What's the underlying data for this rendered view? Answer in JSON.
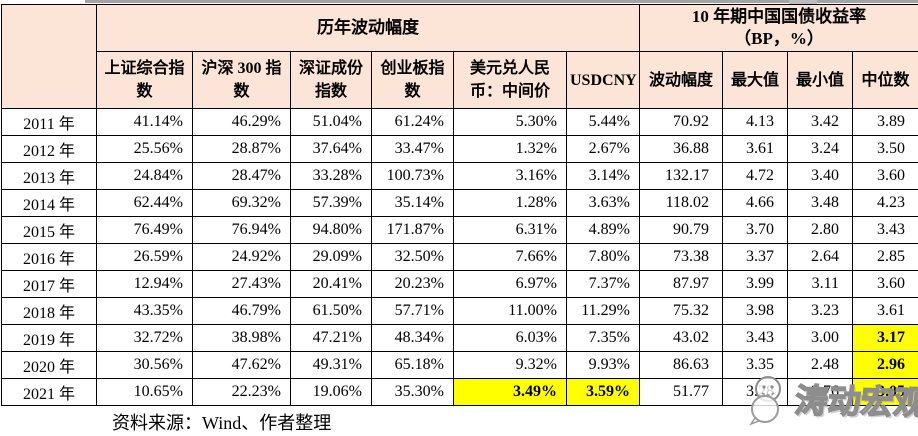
{
  "page": {
    "source_note": "资料来源：Wind、作者整理",
    "watermark": "涛动宏观"
  },
  "colors": {
    "header_bg": "#fce4d6",
    "highlight_bg": "#ffff00",
    "border": "#000000",
    "watermark_grey": "#8d8d8d"
  },
  "chart_data": {
    "type": "table",
    "group_headers": [
      {
        "label": "历年波动幅度",
        "span": 6
      },
      {
        "line1": "10 年期中国国债收益率",
        "line2": "（BP，%）",
        "span": 4
      }
    ],
    "column_headers": [
      "上证综合指数",
      "沪深 300 指数",
      "深证成份指数",
      "创业板指数",
      "美元兑人民币：中间价",
      "USDCNY",
      "波动幅度",
      "最大值",
      "最小值",
      "中位数"
    ],
    "rows": [
      {
        "year": "2011 年",
        "values": [
          "41.14%",
          "46.29%",
          "51.04%",
          "61.24%",
          "5.30%",
          "5.44%",
          "70.92",
          "4.13",
          "3.42",
          "3.89"
        ],
        "highlights": []
      },
      {
        "year": "2012 年",
        "values": [
          "25.56%",
          "28.87%",
          "37.64%",
          "33.47%",
          "1.32%",
          "2.67%",
          "36.88",
          "3.61",
          "3.24",
          "3.50"
        ],
        "highlights": []
      },
      {
        "year": "2013 年",
        "values": [
          "24.84%",
          "28.47%",
          "33.28%",
          "100.73%",
          "3.16%",
          "3.14%",
          "132.17",
          "4.72",
          "3.40",
          "3.60"
        ],
        "highlights": []
      },
      {
        "year": "2014 年",
        "values": [
          "62.44%",
          "69.32%",
          "57.39%",
          "35.14%",
          "1.28%",
          "3.63%",
          "118.02",
          "4.66",
          "3.48",
          "4.23"
        ],
        "highlights": []
      },
      {
        "year": "2015 年",
        "values": [
          "76.49%",
          "76.94%",
          "94.80%",
          "171.87%",
          "6.31%",
          "4.89%",
          "90.79",
          "3.70",
          "2.80",
          "3.43"
        ],
        "highlights": []
      },
      {
        "year": "2016 年",
        "values": [
          "26.59%",
          "24.92%",
          "29.09%",
          "32.50%",
          "7.66%",
          "7.80%",
          "73.38",
          "3.37",
          "2.64",
          "2.85"
        ],
        "highlights": []
      },
      {
        "year": "2017 年",
        "values": [
          "12.94%",
          "27.43%",
          "20.41%",
          "20.23%",
          "6.97%",
          "7.37%",
          "87.97",
          "3.99",
          "3.11",
          "3.60"
        ],
        "highlights": []
      },
      {
        "year": "2018 年",
        "values": [
          "43.35%",
          "46.79%",
          "61.50%",
          "57.71%",
          "11.00%",
          "11.29%",
          "75.32",
          "3.98",
          "3.23",
          "3.61"
        ],
        "highlights": []
      },
      {
        "year": "2019 年",
        "values": [
          "32.72%",
          "38.98%",
          "47.21%",
          "48.34%",
          "6.03%",
          "7.35%",
          "43.02",
          "3.43",
          "3.00",
          "3.17"
        ],
        "highlights": [
          9
        ]
      },
      {
        "year": "2020 年",
        "values": [
          "30.56%",
          "47.62%",
          "49.31%",
          "65.18%",
          "9.32%",
          "9.93%",
          "86.63",
          "3.35",
          "2.48",
          "2.96"
        ],
        "highlights": [
          9
        ]
      },
      {
        "year": "2021 年",
        "values": [
          "10.65%",
          "22.23%",
          "19.06%",
          "35.30%",
          "3.49%",
          "3.59%",
          "51.77",
          "3.28",
          "2.76",
          "3.05"
        ],
        "highlights": [
          4,
          5,
          9
        ]
      }
    ]
  }
}
